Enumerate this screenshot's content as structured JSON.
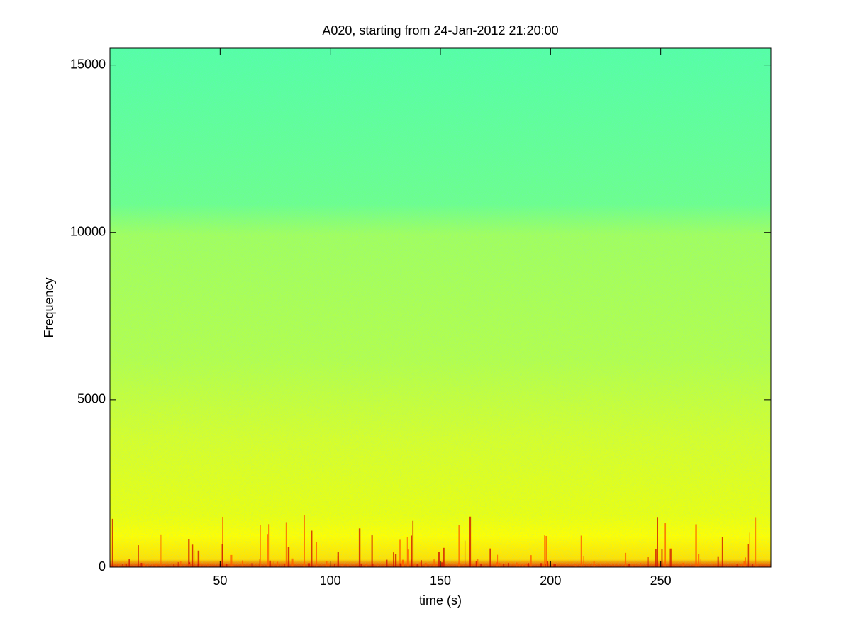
{
  "chart_data": {
    "type": "spectrogram",
    "title": "A020, starting from 24-Jan-2012 21:20:00",
    "x_label": "time (s)",
    "y_label": "Frequency",
    "xlim": [
      0,
      300
    ],
    "xticks": [
      50,
      100,
      150,
      200,
      250
    ],
    "ylim": [
      0,
      15500
    ],
    "yticks": [
      0,
      5000,
      10000,
      15000
    ]
  }
}
